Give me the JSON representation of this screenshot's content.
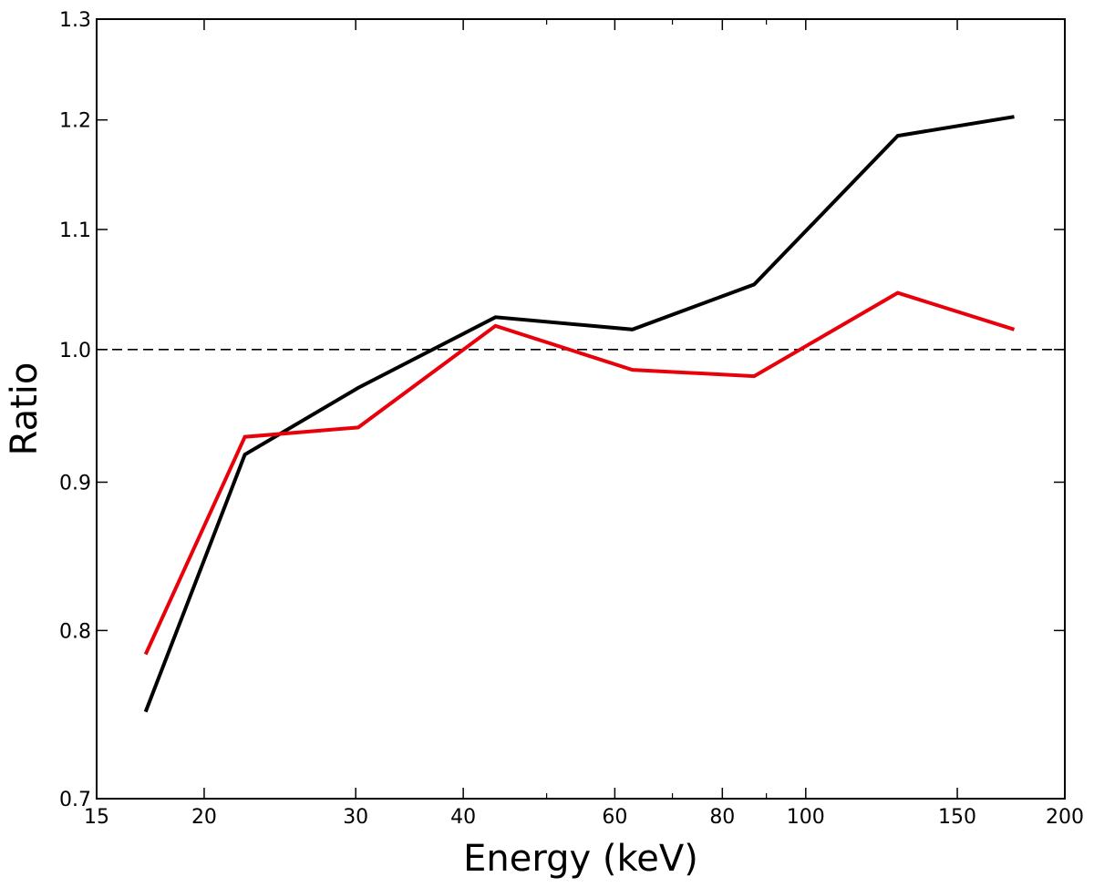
{
  "chart_data": {
    "type": "line",
    "title": "",
    "xlabel": "Energy (keV)",
    "ylabel": "Ratio",
    "xscale": "log",
    "yscale": "log",
    "xlim": [
      15,
      200
    ],
    "ylim": [
      0.7,
      1.3
    ],
    "xticks": [
      {
        "value": 15,
        "label": "15"
      },
      {
        "value": 20,
        "label": "20"
      },
      {
        "value": 30,
        "label": "30"
      },
      {
        "value": 40,
        "label": "40"
      },
      {
        "value": 60,
        "label": "60"
      },
      {
        "value": 80,
        "label": "80"
      },
      {
        "value": 100,
        "label": "100"
      },
      {
        "value": 150,
        "label": "150"
      },
      {
        "value": 200,
        "label": "200"
      }
    ],
    "xminor": [
      50,
      70,
      90
    ],
    "yticks": [
      {
        "value": 0.7,
        "label": "0.7"
      },
      {
        "value": 0.8,
        "label": "0.8"
      },
      {
        "value": 0.9,
        "label": "0.9"
      },
      {
        "value": 1.0,
        "label": "1.0"
      },
      {
        "value": 1.1,
        "label": "1.1"
      },
      {
        "value": 1.2,
        "label": "1.2"
      },
      {
        "value": 1.3,
        "label": "1.3"
      }
    ],
    "reference_line": {
      "y": 1.0,
      "style": "dashed",
      "color": "#000000"
    },
    "grid": false,
    "series": [
      {
        "name": "black",
        "color": "#000000",
        "x": [
          17.1,
          22.3,
          30.2,
          43.6,
          62.9,
          87.1,
          127.9,
          174.7
        ],
        "y": [
          0.75,
          0.92,
          0.97,
          1.026,
          1.016,
          1.053,
          1.185,
          1.203
        ]
      },
      {
        "name": "red",
        "color": "#e8000b",
        "x": [
          17.1,
          22.3,
          30.2,
          43.6,
          62.9,
          87.1,
          127.9,
          174.7
        ],
        "y": [
          0.785,
          0.933,
          0.94,
          1.019,
          0.984,
          0.979,
          1.046,
          1.016
        ]
      }
    ]
  }
}
